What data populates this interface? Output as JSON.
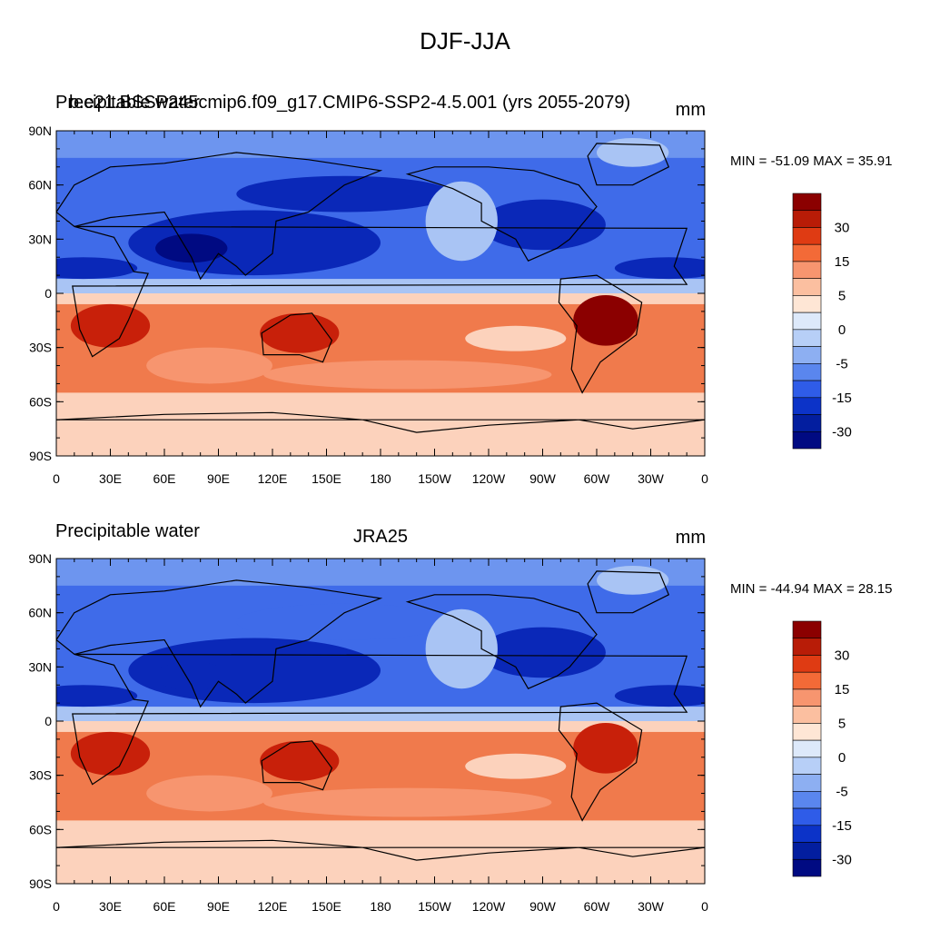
{
  "figure": {
    "title": "DJF-JJA"
  },
  "panels": [
    {
      "id": "top",
      "left_label_a": "Precipitable water",
      "left_label_b": "b.e21.BSSP245cmip6.f09_g17.CMIP6-SSP2-4.5.001 (yrs 2055-2079)",
      "center_label": "",
      "units": "mm",
      "minmax": "MIN = -51.09 MAX =  35.91"
    },
    {
      "id": "bottom",
      "left_label_a": "Precipitable water",
      "left_label_b": "",
      "center_label": "JRA25",
      "units": "mm",
      "minmax": "MIN = -44.94 MAX =  28.15"
    }
  ],
  "map": {
    "projection": "cylindrical equidistant",
    "lon_range": [
      0,
      360
    ],
    "lat_range": [
      -90,
      90
    ],
    "lat_tick_labels": [
      "90N",
      "60N",
      "30N",
      "0",
      "30S",
      "60S",
      "90S"
    ],
    "lon_tick_labels": [
      "0",
      "30E",
      "60E",
      "90E",
      "120E",
      "150E",
      "180",
      "150W",
      "120W",
      "90W",
      "60W",
      "30W",
      "0"
    ]
  },
  "colorbar": {
    "labels": [
      "30",
      "15",
      "5",
      "0",
      "-5",
      "-15",
      "-30"
    ],
    "colors": [
      "#8b0000",
      "#b81c07",
      "#df3b13",
      "#f36a37",
      "#f7956f",
      "#fbbfa0",
      "#fee6d5",
      "#dde9fa",
      "#b7cff7",
      "#8daff2",
      "#5a86ee",
      "#2f5ce8",
      "#0c33c8",
      "#031e9f",
      "#000a82"
    ]
  },
  "legend_colors": {
    "strong_positive": "#c8200a",
    "positive": "#f07a4c",
    "weak_positive": "#fcd2bc",
    "weak_negative": "#a9c4f4",
    "negative": "#3f6be9",
    "strong_negative": "#0a28b8"
  }
}
